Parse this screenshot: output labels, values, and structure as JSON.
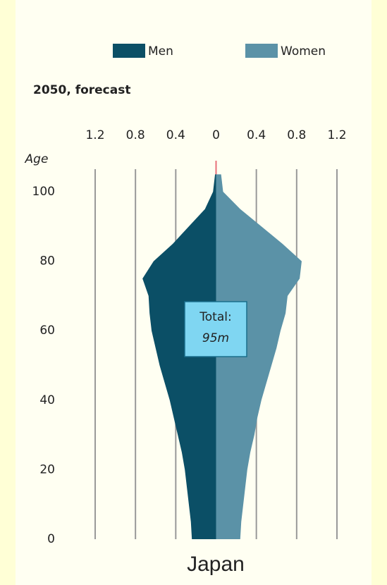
{
  "chart_data": {
    "type": "pyramid",
    "title": "2050, forecast",
    "y_label": "Age",
    "footer": "Japan",
    "annotation": {
      "line1": "Total:",
      "line2": "95m"
    },
    "ages": [
      0,
      5,
      10,
      15,
      20,
      25,
      30,
      35,
      40,
      45,
      50,
      55,
      60,
      65,
      70,
      75,
      80,
      85,
      90,
      95,
      100,
      105
    ],
    "series": [
      {
        "name": "Men",
        "color": "#0b4f66",
        "side": "left",
        "values": [
          0.24,
          0.25,
          0.27,
          0.29,
          0.31,
          0.34,
          0.38,
          0.42,
          0.46,
          0.51,
          0.56,
          0.6,
          0.64,
          0.66,
          0.67,
          0.73,
          0.62,
          0.43,
          0.27,
          0.11,
          0.03,
          0.01
        ]
      },
      {
        "name": "Women",
        "color": "#5b92a7",
        "side": "right",
        "values": [
          0.24,
          0.25,
          0.27,
          0.29,
          0.31,
          0.34,
          0.38,
          0.41,
          0.45,
          0.5,
          0.55,
          0.6,
          0.64,
          0.69,
          0.71,
          0.83,
          0.85,
          0.66,
          0.45,
          0.24,
          0.07,
          0.05
        ]
      }
    ],
    "xlim": [
      -1.2,
      1.2
    ],
    "xticks": [
      {
        "value": -1.2,
        "label": "1.2"
      },
      {
        "value": -0.8,
        "label": "0.8"
      },
      {
        "value": -0.4,
        "label": "0.4"
      },
      0,
      0.4,
      0.8,
      1.2
    ],
    "ylim": [
      0,
      100
    ],
    "yticks": [
      0,
      20,
      40,
      60,
      80,
      100
    ],
    "grid": true,
    "legend": "top"
  }
}
